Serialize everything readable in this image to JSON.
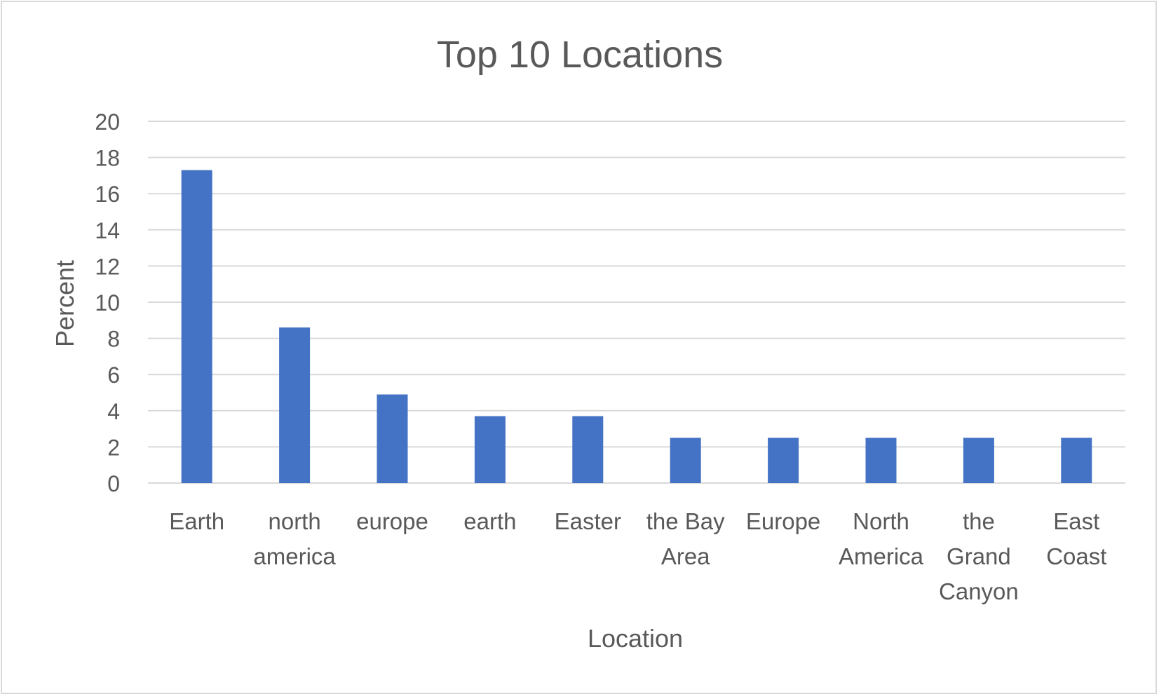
{
  "chart_data": {
    "type": "bar",
    "title": "Top 10 Locations",
    "xlabel": "Location",
    "ylabel": "Percent",
    "categories": [
      [
        "Earth"
      ],
      [
        "north",
        "america"
      ],
      [
        "europe"
      ],
      [
        "earth"
      ],
      [
        "Easter"
      ],
      [
        "the Bay",
        "Area"
      ],
      [
        "Europe"
      ],
      [
        "North",
        "America"
      ],
      [
        "the",
        "Grand",
        "Canyon"
      ],
      [
        "East",
        "Coast"
      ]
    ],
    "values": [
      17.3,
      8.6,
      4.9,
      3.7,
      3.7,
      2.5,
      2.5,
      2.5,
      2.5,
      2.5
    ],
    "ylim": [
      0,
      20
    ],
    "yticks": [
      "0",
      "2",
      "4",
      "6",
      "8",
      "10",
      "12",
      "14",
      "16",
      "18",
      "20"
    ],
    "grid": true,
    "legend": "none",
    "bar_color": "#4472c4",
    "grid_color": "#d9d9d9",
    "text_color": "#595959"
  }
}
